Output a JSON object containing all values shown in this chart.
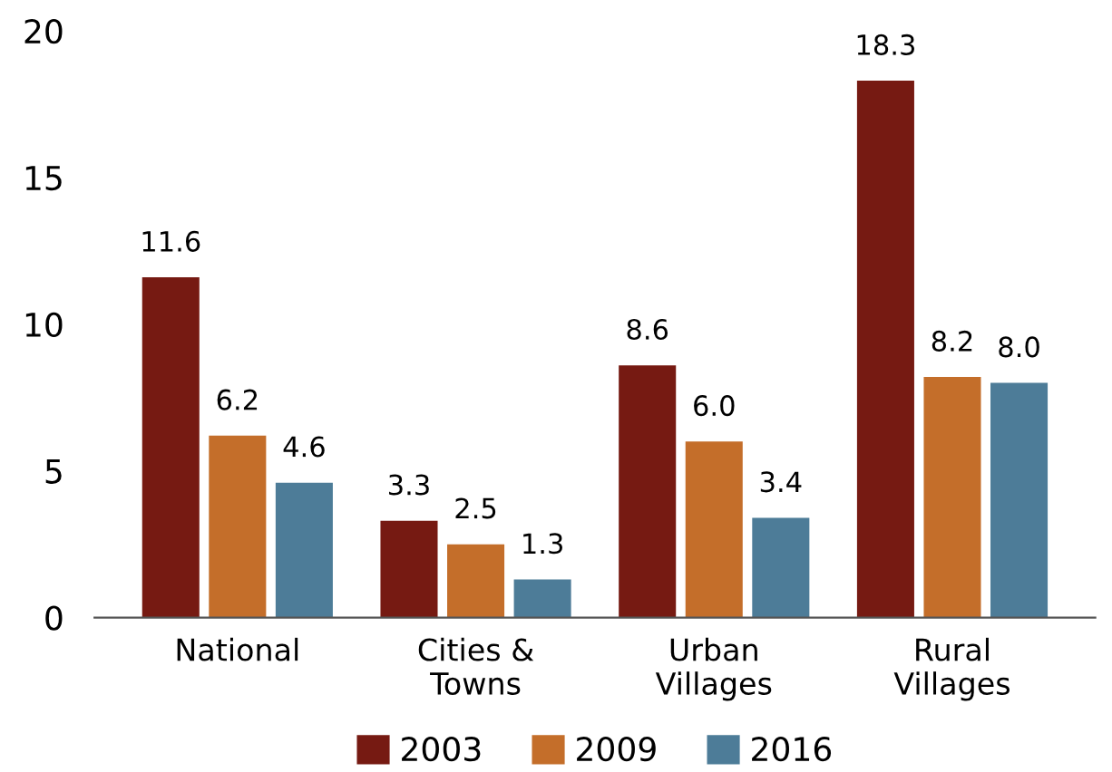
{
  "chart_data": {
    "type": "bar",
    "categories": [
      "National",
      "Cities &\nTowns",
      "Urban\nVillages",
      "Rural\nVillages"
    ],
    "series": [
      {
        "name": "2003",
        "color": "#761a12",
        "values": [
          11.6,
          3.3,
          8.6,
          18.3
        ],
        "value_labels": [
          "11.6",
          "3.3",
          "8.6",
          "18.3"
        ]
      },
      {
        "name": "2009",
        "color": "#c46e2a",
        "values": [
          6.2,
          2.5,
          6.0,
          8.2
        ],
        "value_labels": [
          "6.2",
          "2.5",
          "6.0",
          "8.2"
        ]
      },
      {
        "name": "2016",
        "color": "#4d7c98",
        "values": [
          4.6,
          1.3,
          3.4,
          8.0
        ],
        "value_labels": [
          "4.6",
          "1.3",
          "3.4",
          "8.0"
        ]
      }
    ],
    "ylim": [
      0,
      20
    ],
    "yticks": [
      0,
      5,
      10,
      15,
      20
    ],
    "grid": false,
    "legend": "bottom"
  }
}
